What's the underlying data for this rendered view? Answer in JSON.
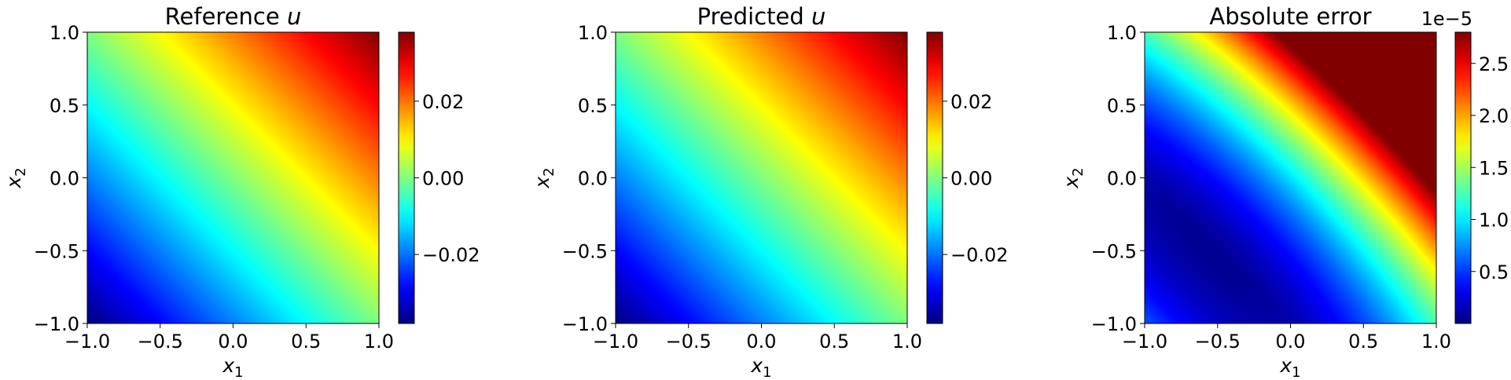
{
  "chart_data": [
    {
      "type": "heatmap",
      "title": "Reference u",
      "title_text": "Reference ",
      "title_var": "u",
      "xlabel": "x1",
      "ylabel": "x2",
      "xlim": [
        -1.0,
        1.0
      ],
      "ylim": [
        -1.0,
        1.0
      ],
      "x_ticks": [
        -1.0,
        -0.5,
        0.0,
        0.5,
        1.0
      ],
      "x_tick_labels": [
        "−1.0",
        "−0.5",
        "0.0",
        "0.5",
        "1.0"
      ],
      "y_ticks": [
        -1.0,
        -0.5,
        0.0,
        0.5,
        1.0
      ],
      "y_tick_labels": [
        "−1.0",
        "−0.5",
        "0.0",
        "0.5",
        "1.0"
      ],
      "colormap": "jet",
      "color_range": [
        -0.038,
        0.038
      ],
      "colorbar_ticks": [
        -0.02,
        0.0,
        0.02
      ],
      "colorbar_tick_labels": [
        "−0.02",
        "0.00",
        "0.02"
      ],
      "colorbar_offset": "",
      "field": "0.019*(x1+x2)",
      "corner_values": {
        "x1=-1,x2=-1": -0.038,
        "x1=1,x2=1": 0.038
      }
    },
    {
      "type": "heatmap",
      "title": "Predicted u",
      "title_text": "Predicted ",
      "title_var": "u",
      "xlabel": "x1",
      "ylabel": "x2",
      "xlim": [
        -1.0,
        1.0
      ],
      "ylim": [
        -1.0,
        1.0
      ],
      "x_ticks": [
        -1.0,
        -0.5,
        0.0,
        0.5,
        1.0
      ],
      "x_tick_labels": [
        "−1.0",
        "−0.5",
        "0.0",
        "0.5",
        "1.0"
      ],
      "y_ticks": [
        -1.0,
        -0.5,
        0.0,
        0.5,
        1.0
      ],
      "y_tick_labels": [
        "−1.0",
        "−0.5",
        "0.0",
        "0.5",
        "1.0"
      ],
      "colormap": "jet",
      "color_range": [
        -0.038,
        0.038
      ],
      "colorbar_ticks": [
        -0.02,
        0.0,
        0.02
      ],
      "colorbar_tick_labels": [
        "−0.02",
        "0.00",
        "0.02"
      ],
      "colorbar_offset": "",
      "field": "0.019*(x1+x2)",
      "corner_values": {
        "x1=-1,x2=-1": -0.038,
        "x1=1,x2=1": 0.038
      }
    },
    {
      "type": "heatmap",
      "title": "Absolute error",
      "title_text": "Absolute error",
      "title_var": "",
      "xlabel": "x1",
      "ylabel": "x2",
      "xlim": [
        -1.0,
        1.0
      ],
      "ylim": [
        -1.0,
        1.0
      ],
      "x_ticks": [
        -1.0,
        -0.5,
        0.0,
        0.5,
        1.0
      ],
      "x_tick_labels": [
        "−1.0",
        "−0.5",
        "0.0",
        "0.5",
        "1.0"
      ],
      "y_ticks": [
        -1.0,
        -0.5,
        0.0,
        0.5,
        1.0
      ],
      "y_tick_labels": [
        "−1.0",
        "−0.5",
        "0.0",
        "0.5",
        "1.0"
      ],
      "colormap": "jet",
      "color_range": [
        0.0,
        2.8
      ],
      "colorbar_ticks": [
        0.5,
        1.0,
        1.5,
        2.0,
        2.5
      ],
      "colorbar_tick_labels": [
        "0.5",
        "1.0",
        "1.5",
        "2.0",
        "2.5"
      ],
      "colorbar_offset": "1e−5",
      "field": "low along a diagonal band from (-1,0) to (0,-1), increasing toward (1,1)",
      "corner_values": {
        "x1=-1,x2=-1": 0.6,
        "x1=-1,x2=1": 0.9,
        "x1=1,x2=-1": 1.1,
        "x1=1,x2=1": 2.8
      }
    }
  ]
}
